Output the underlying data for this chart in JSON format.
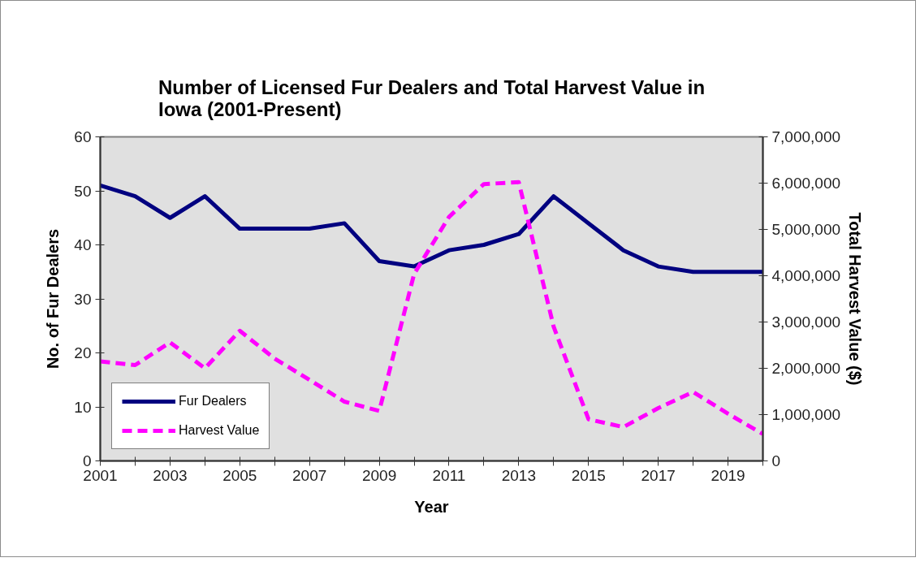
{
  "chart_data": {
    "type": "line",
    "title": "Number of Licensed Fur Dealers and Total Harvest Value in Iowa (2001-Present)",
    "xlabel": "Year",
    "ylabel": "No. of Fur Dealers",
    "y2label": "Total Harvest Value ($)",
    "x": [
      2001,
      2002,
      2003,
      2004,
      2005,
      2006,
      2007,
      2008,
      2009,
      2010,
      2011,
      2012,
      2013,
      2014,
      2015,
      2016,
      2017,
      2018,
      2019,
      2020
    ],
    "series": [
      {
        "name": "Fur Dealers",
        "color": "#000080",
        "line_style": "solid",
        "values": [
          51,
          49,
          45,
          49,
          43,
          43,
          43,
          44,
          37,
          36,
          39,
          40,
          42,
          49,
          44,
          39,
          36,
          35,
          35,
          35
        ]
      },
      {
        "name": "Harvest Value",
        "color": "#ff00ff",
        "line_style": "dashed",
        "axis": "y2",
        "values": [
          2150000,
          2070000,
          2560000,
          2000000,
          2810000,
          2210000,
          1750000,
          1280000,
          1080000,
          4040000,
          5270000,
          5980000,
          6020000,
          2900000,
          900000,
          730000,
          1140000,
          1490000,
          1020000,
          580000
        ]
      }
    ],
    "xlim": [
      2001,
      2020
    ],
    "xticks": [
      2001,
      {
        "value": 2002,
        "label": null
      },
      2003,
      {
        "value": 2004,
        "label": null
      },
      2005,
      {
        "value": 2006,
        "label": null
      },
      2007,
      {
        "value": 2008,
        "label": null
      },
      2009,
      {
        "value": 2010,
        "label": null
      },
      2011,
      {
        "value": 2012,
        "label": null
      },
      2013,
      {
        "value": 2014,
        "label": null
      },
      2015,
      {
        "value": 2016,
        "label": null
      },
      2017,
      {
        "value": 2018,
        "label": null
      },
      2019,
      {
        "value": 2020,
        "label": null
      }
    ],
    "ylim": [
      0,
      60
    ],
    "yticks": [
      0,
      10,
      20,
      30,
      40,
      50,
      60
    ],
    "y2lim": [
      0,
      7000000
    ],
    "y2ticks": [
      0,
      {
        "value": 1000000,
        "label": "1,000,000"
      },
      {
        "value": 2000000,
        "label": "2,000,000"
      },
      {
        "value": 3000000,
        "label": "3,000,000"
      },
      {
        "value": 4000000,
        "label": "4,000,000"
      },
      {
        "value": 5000000,
        "label": "5,000,000"
      },
      {
        "value": 6000000,
        "label": "6,000,000"
      },
      {
        "value": 7000000,
        "label": "7,000,000"
      }
    ],
    "grid": false,
    "legend": "bottom left",
    "marker": "none"
  }
}
